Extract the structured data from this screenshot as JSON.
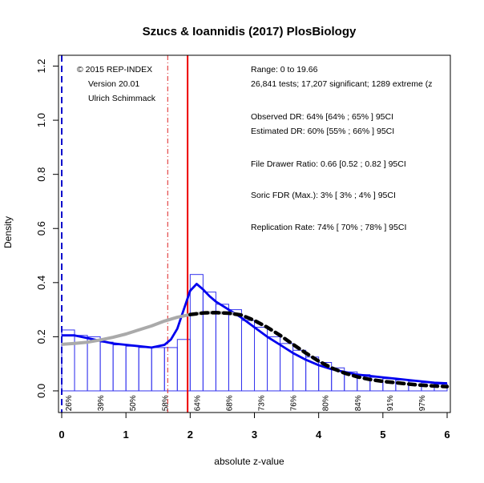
{
  "chart_data": {
    "type": "bar",
    "title": "Szucs & Ioannidis (2017) PlosBiology",
    "xlabel": "absolute z-value",
    "ylabel": "Density",
    "xlim": [
      -0.05,
      6.05
    ],
    "ylim": [
      -0.08,
      1.24
    ],
    "x_ticks": [
      0,
      1,
      2,
      3,
      4,
      5,
      6
    ],
    "y_ticks": [
      0.0,
      0.2,
      0.4,
      0.6,
      0.8,
      1.0,
      1.2
    ],
    "y_tick_labels": [
      "0.0",
      "0.2",
      "0.4",
      "0.6",
      "0.8",
      "1.0",
      "1.2"
    ],
    "histogram": {
      "bin_width": 0.2,
      "bin_starts": [
        0.0,
        0.2,
        0.4,
        0.6,
        0.8,
        1.0,
        1.2,
        1.4,
        1.6,
        1.8,
        2.0,
        2.2,
        2.4,
        2.6,
        2.8,
        3.0,
        3.2,
        3.4,
        3.6,
        3.8,
        4.0,
        4.2,
        4.4,
        4.6,
        4.8,
        5.0,
        5.2,
        5.4,
        5.6,
        5.8
      ],
      "density": [
        0.225,
        0.205,
        0.2,
        0.18,
        0.17,
        0.165,
        0.16,
        0.16,
        0.16,
        0.19,
        0.43,
        0.365,
        0.32,
        0.3,
        0.26,
        0.235,
        0.2,
        0.175,
        0.15,
        0.125,
        0.105,
        0.085,
        0.07,
        0.06,
        0.05,
        0.045,
        0.04,
        0.035,
        0.03,
        0.025
      ]
    },
    "series": [
      {
        "color": "#0000ee",
        "style": "solid",
        "x": [
          0,
          0.2,
          0.4,
          0.6,
          0.8,
          1.0,
          1.2,
          1.4,
          1.6,
          1.7,
          1.8,
          1.9,
          2.0,
          2.1,
          2.2,
          2.3,
          2.4,
          2.6,
          2.8,
          3.0,
          3.2,
          3.4,
          3.6,
          3.8,
          4.0,
          4.2,
          4.4,
          4.6,
          4.8,
          5.0,
          5.2,
          5.4,
          5.6,
          5.8,
          6.0
        ],
        "y": [
          0.205,
          0.205,
          0.195,
          0.185,
          0.175,
          0.17,
          0.165,
          0.16,
          0.17,
          0.19,
          0.23,
          0.3,
          0.37,
          0.395,
          0.375,
          0.35,
          0.33,
          0.3,
          0.27,
          0.235,
          0.2,
          0.17,
          0.14,
          0.115,
          0.095,
          0.08,
          0.07,
          0.06,
          0.055,
          0.05,
          0.045,
          0.04,
          0.035,
          0.03,
          0.028
        ]
      },
      {
        "color": "#aaaaaa",
        "style": "solid",
        "x": [
          0,
          0.2,
          0.4,
          0.6,
          0.8,
          1.0,
          1.2,
          1.4,
          1.6,
          1.8,
          2.0,
          2.2,
          2.4,
          2.6,
          2.8
        ],
        "y": [
          0.172,
          0.175,
          0.18,
          0.188,
          0.198,
          0.21,
          0.225,
          0.24,
          0.258,
          0.272,
          0.282,
          0.288,
          0.289,
          0.287,
          0.282
        ]
      },
      {
        "color": "#000000",
        "style": "dashed",
        "x": [
          2.0,
          2.2,
          2.4,
          2.6,
          2.8,
          3.0,
          3.2,
          3.4,
          3.6,
          3.8,
          4.0,
          4.2,
          4.4,
          4.6,
          4.8,
          5.0,
          5.2,
          5.4,
          5.6,
          5.8,
          6.0
        ],
        "y": [
          0.282,
          0.288,
          0.289,
          0.287,
          0.28,
          0.26,
          0.235,
          0.205,
          0.172,
          0.14,
          0.11,
          0.085,
          0.066,
          0.052,
          0.042,
          0.035,
          0.03,
          0.025,
          0.021,
          0.018,
          0.016
        ]
      }
    ],
    "vertical_lines": [
      {
        "x": 0.0,
        "color": "#0000cc",
        "style": "dashed"
      },
      {
        "x": 1.65,
        "color": "#dd2222",
        "style": "dashdot"
      },
      {
        "x": 1.96,
        "color": "#ee0000",
        "style": "solid"
      }
    ],
    "percent_labels": [
      {
        "x": 0.1,
        "text": "26%"
      },
      {
        "x": 0.6,
        "text": "39%"
      },
      {
        "x": 1.1,
        "text": "50%"
      },
      {
        "x": 1.6,
        "text": "58%"
      },
      {
        "x": 2.1,
        "text": "64%"
      },
      {
        "x": 2.6,
        "text": "68%"
      },
      {
        "x": 3.1,
        "text": "73%"
      },
      {
        "x": 3.6,
        "text": "76%"
      },
      {
        "x": 4.1,
        "text": "80%"
      },
      {
        "x": 4.6,
        "text": "84%"
      },
      {
        "x": 5.1,
        "text": "91%"
      },
      {
        "x": 5.6,
        "text": "97%"
      }
    ],
    "annotations_left": [
      "© 2015 REP-INDEX",
      "Version 20.01",
      "Ulrich Schimmack"
    ],
    "annotations_right": [
      "Range: 0 to 19.66",
      "26,841 tests; 17,207 significant; 1289 extreme (z",
      "Observed DR: 64% [64% ; 65% ] 95CI",
      "Estimated DR: 60% [55% ; 66% ] 95CI",
      "File Drawer Ratio: 0.66 [0.52 ; 0.82 ] 95CI",
      "Soric FDR (Max.): 3% [ 3% ; 4% ] 95CI",
      "Replication Rate: 74% [ 70% ; 78% ] 95CI"
    ],
    "grid": false,
    "legend": "none"
  }
}
